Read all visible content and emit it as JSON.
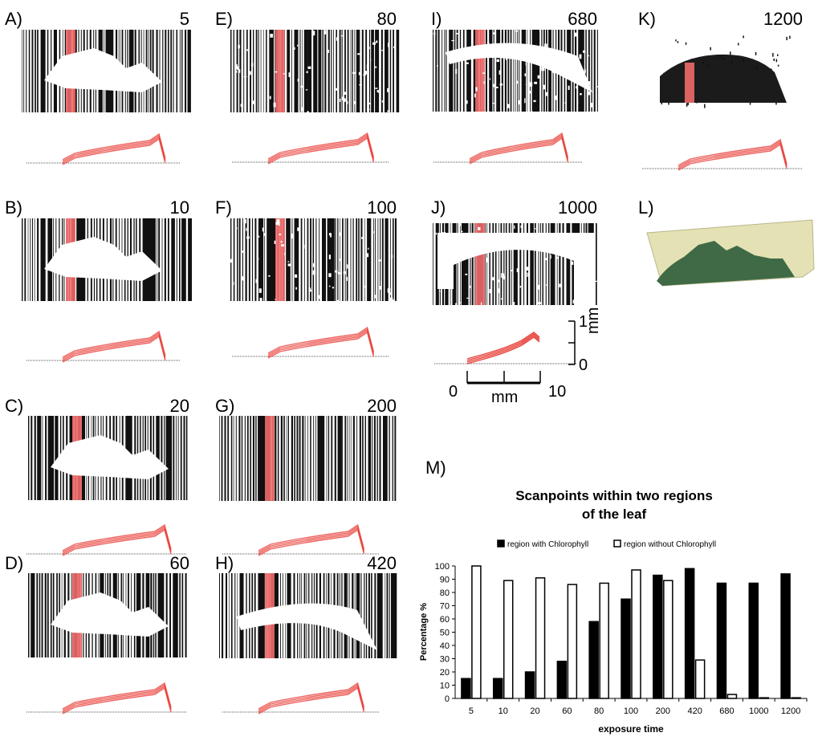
{
  "panels": [
    {
      "letter": "A)",
      "exposure": "5"
    },
    {
      "letter": "B)",
      "exposure": "10"
    },
    {
      "letter": "C)",
      "exposure": "20"
    },
    {
      "letter": "D)",
      "exposure": "60"
    },
    {
      "letter": "E)",
      "exposure": "80"
    },
    {
      "letter": "F)",
      "exposure": "100"
    },
    {
      "letter": "G)",
      "exposure": "200"
    },
    {
      "letter": "H)",
      "exposure": "420"
    },
    {
      "letter": "I)",
      "exposure": "680"
    },
    {
      "letter": "J)",
      "exposure": "1000"
    },
    {
      "letter": "K)",
      "exposure": "1200"
    },
    {
      "letter": "L)",
      "exposure": ""
    },
    {
      "letter": "M)",
      "exposure": ""
    }
  ],
  "scale_bar": {
    "vertical_top": "1",
    "vertical_bottom": "0",
    "vertical_unit": "mm",
    "horizontal_left": "0",
    "horizontal_right": "10",
    "horizontal_unit": "mm"
  },
  "colors": {
    "scan_black": "#111111",
    "scan_red": "#f06a6a",
    "profile_red": "#e8403a",
    "leaf_green": "#3f6a45",
    "leaf_bg": "#e4e2b4"
  },
  "chart_data": {
    "type": "bar",
    "title_line1": "Scanpoints within two regions",
    "title_line2": "of the leaf",
    "xlabel": "exposure time",
    "ylabel": "Percentage %",
    "ylim": [
      0,
      100
    ],
    "yticks": [
      "0",
      "10",
      "20",
      "30",
      "40",
      "50",
      "60",
      "70",
      "80",
      "90",
      "100"
    ],
    "legend_position": "top",
    "categories": [
      "5",
      "10",
      "20",
      "60",
      "80",
      "100",
      "200",
      "420",
      "680",
      "1000",
      "1200"
    ],
    "series": [
      {
        "name": "region with Chlorophyll",
        "color": "#000000",
        "values": [
          15,
          15,
          20,
          28,
          58,
          75,
          93,
          98,
          87,
          87,
          94
        ]
      },
      {
        "name": "region without Chlorophyll",
        "color": "#ffffff",
        "values": [
          100,
          89,
          91,
          86,
          87,
          97,
          89,
          29,
          3,
          0.5,
          0.5
        ]
      }
    ]
  }
}
